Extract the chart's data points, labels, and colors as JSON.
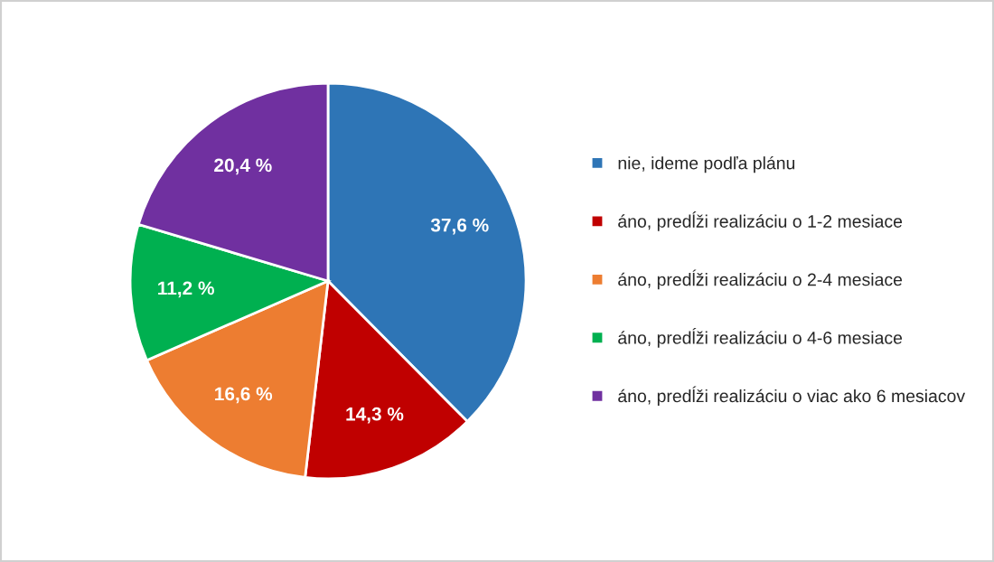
{
  "chart_data": {
    "type": "pie",
    "categories": [
      "nie, ideme podľa plánu",
      "áno, predĺži realizáciu o 1-2 mesiace",
      "áno, predĺži realizáciu o 2-4 mesiace",
      "áno, predĺži realizáciu o 4-6 mesiace",
      "áno, predĺži realizáciu o viac ako 6 mesiacov"
    ],
    "values": [
      37.6,
      14.3,
      16.6,
      11.2,
      20.4
    ],
    "value_labels": [
      "37,6 %",
      "14,3 %",
      "16,6 %",
      "11,2 %",
      "20,4 %"
    ],
    "colors": [
      "#2e75b6",
      "#c00000",
      "#ed7d31",
      "#00b050",
      "#7030a0"
    ],
    "legend": "right"
  }
}
